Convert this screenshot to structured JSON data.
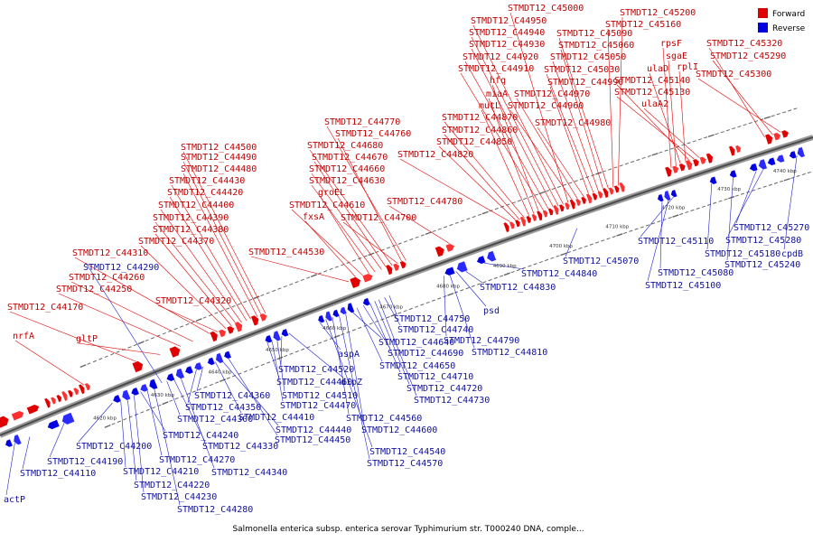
{
  "caption": "Salmonella enterica subsp. enterica serovar Typhimurium str. T000240 DNA, comple...",
  "legend": {
    "forward_label": "Forward",
    "reverse_label": "Reverse",
    "forward_color": "#e00000",
    "reverse_color": "#0000e0"
  },
  "scale": {
    "tick_labels": [
      "4620 kbp",
      "4630 kbp",
      "4640 kbp",
      "4650 kbp",
      "4660 kbp",
      "4670 kbp",
      "4680 kbp",
      "4690 kbp",
      "4700 kbp",
      "4710 kbp",
      "4720 kbp",
      "4730 kbp",
      "4740 kbp"
    ],
    "minor_ticks_per_interval": 9
  },
  "forward_labels": [
    "nrfA",
    "STMDT12_C44170",
    "gltP",
    "STMDT12_C44250",
    "STMDT12_C44260",
    "STMDT12_C44310",
    "STMDT12_C44320",
    "STMDT12_C44370",
    "STMDT12_C44380",
    "STMDT12_C44390",
    "STMDT12_C44400",
    "STMDT12_C44420",
    "STMDT12_C44430",
    "STMDT12_C44480",
    "STMDT12_C44490",
    "STMDT12_C44500",
    "STMDT12_C44530",
    "fxsA",
    "STMDT12_C44610",
    "groEL",
    "STMDT12_C44630",
    "STMDT12_C44660",
    "STMDT12_C44670",
    "STMDT12_C44680",
    "STMDT12_C44700",
    "STMDT12_C44760",
    "STMDT12_C44770",
    "STMDT12_C44780",
    "STMDT12_C44820",
    "STMDT12_C44850",
    "STMDT12_C44860",
    "STMDT12_C44870",
    "mutL",
    "miaA",
    "hfq",
    "STMDT12_C44910",
    "STMDT12_C44920",
    "STMDT12_C44930",
    "STMDT12_C44940",
    "STMDT12_C44950",
    "STMDT12_C45000",
    "STMDT12_C44960",
    "STMDT12_C44970",
    "STMDT12_C44980",
    "STMDT12_C44990",
    "STMDT12_C45030",
    "STMDT12_C45050",
    "STMDT12_C45060",
    "STMDT12_C45090",
    "STMDT12_C45160",
    "STMDT12_C45200",
    "rpsF",
    "sgaE",
    "ulaD",
    "rplI",
    "STMDT12_C45140",
    "STMDT12_C45130",
    "ulaA2",
    "STMDT12_C45320",
    "STMDT12_C45290",
    "STMDT12_C45300"
  ],
  "reverse_labels": [
    "actP",
    "STMDT12_C44110",
    "STMDT12_C44190",
    "STMDT12_C44200",
    "STMDT12_C44210",
    "STMDT12_C44220",
    "STMDT12_C44230",
    "STMDT12_C44240",
    "STMDT12_C44270",
    "STMDT12_C44280",
    "STMDT12_C44290",
    "STMDT12_C44300",
    "STMDT12_C44330",
    "STMDT12_C44340",
    "STMDT12_C44350",
    "STMDT12_C44360",
    "STMDT12_C44410",
    "STMDT12_C44440",
    "STMDT12_C44450",
    "STMDT12_C44460",
    "STMDT12_C44470",
    "STMDT12_C44510",
    "STMDT12_C44520",
    "dipZ",
    "aspA",
    "STMDT12_C44540",
    "STMDT12_C44560",
    "STMDT12_C44570",
    "STMDT12_C44600",
    "STMDT12_C44640",
    "STMDT12_C44650",
    "STMDT12_C44690",
    "STMDT12_C44710",
    "STMDT12_C44720",
    "STMDT12_C44730",
    "STMDT12_C44740",
    "STMDT12_C44750",
    "STMDT12_C44790",
    "STMDT12_C44810",
    "psd",
    "STMDT12_C44830",
    "STMDT12_C44840",
    "STMDT12_C45070",
    "STMDT12_C45080",
    "STMDT12_C45100",
    "STMDT12_C45110",
    "STMDT12_C45180",
    "STMDT12_C45240",
    "STMDT12_C45270",
    "STMDT12_C45280",
    "cpdB"
  ]
}
